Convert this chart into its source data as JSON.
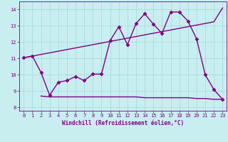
{
  "x": [
    0,
    1,
    2,
    3,
    4,
    5,
    6,
    7,
    8,
    9,
    10,
    11,
    12,
    13,
    14,
    15,
    16,
    17,
    18,
    19,
    20,
    21,
    22,
    23
  ],
  "line1": [
    11.05,
    11.15,
    11.25,
    11.35,
    11.45,
    11.55,
    11.65,
    11.75,
    11.85,
    11.95,
    12.05,
    12.15,
    12.25,
    12.35,
    12.45,
    12.55,
    12.65,
    12.75,
    12.85,
    12.95,
    13.05,
    13.15,
    13.25,
    14.1
  ],
  "line2": [
    11.05,
    11.15,
    10.15,
    8.75,
    9.55,
    9.65,
    9.9,
    9.65,
    10.05,
    10.05,
    12.1,
    12.95,
    11.85,
    13.15,
    13.75,
    13.1,
    12.55,
    13.85,
    13.85,
    13.3,
    12.2,
    10.0,
    9.1,
    8.5
  ],
  "line3": [
    null,
    null,
    8.7,
    8.65,
    8.65,
    8.65,
    8.65,
    8.65,
    8.65,
    8.65,
    8.65,
    8.65,
    8.65,
    8.65,
    8.6,
    8.6,
    8.6,
    8.6,
    8.6,
    8.6,
    8.55,
    8.55,
    8.5,
    8.5
  ],
  "color": "#800080",
  "marker": "D",
  "markersize": 2.5,
  "linewidth": 1.0,
  "xlim": [
    -0.5,
    23.5
  ],
  "ylim": [
    7.8,
    14.5
  ],
  "yticks": [
    8,
    9,
    10,
    11,
    12,
    13,
    14
  ],
  "xticks": [
    0,
    1,
    2,
    3,
    4,
    5,
    6,
    7,
    8,
    9,
    10,
    11,
    12,
    13,
    14,
    15,
    16,
    17,
    18,
    19,
    20,
    21,
    22,
    23
  ],
  "xlabel": "Windchill (Refroidissement éolien,°C)",
  "bg_color": "#c8eef0",
  "grid_color": "#a0d8dc",
  "text_color": "#800080",
  "tick_fontsize": 5.0,
  "xlabel_fontsize": 5.5
}
